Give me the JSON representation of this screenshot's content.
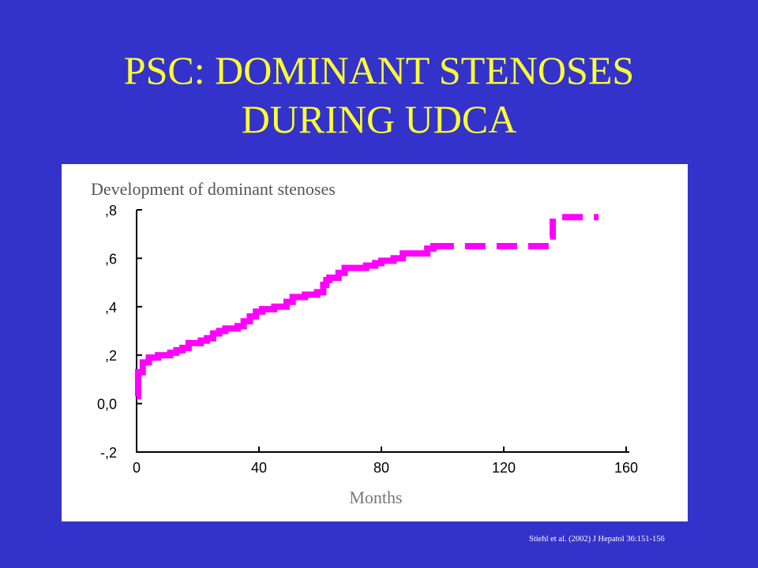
{
  "slide": {
    "title_line1": "PSC: DOMINANT STENOSES",
    "title_line2": "DURING UDCA",
    "citation": "Stiehl et al. (2002) J Hepatol 36:151-156",
    "background_color": "#3333cc",
    "title_color": "#ffff33"
  },
  "chart_data": {
    "type": "line",
    "title": "Development of dominant stenoses",
    "xlabel": "Months",
    "ylabel": "",
    "xlim": [
      0,
      160
    ],
    "ylim": [
      -0.2,
      0.8
    ],
    "xticks": [
      {
        "value": 0,
        "label": "0"
      },
      {
        "value": 40,
        "label": "40"
      },
      {
        "value": 80,
        "label": "80"
      },
      {
        "value": 120,
        "label": "120"
      },
      {
        "value": 160,
        "label": "160"
      }
    ],
    "yticks": [
      {
        "value": -0.2,
        "label": "-,2"
      },
      {
        "value": 0.0,
        "label": "0,0"
      },
      {
        "value": 0.2,
        "label": ",2"
      },
      {
        "value": 0.4,
        "label": ",4"
      },
      {
        "value": 0.6,
        "label": ",6"
      },
      {
        "value": 0.8,
        "label": ",8"
      }
    ],
    "grid": false,
    "series": [
      {
        "color": "#ff00ff",
        "style": "step",
        "points": [
          {
            "x": 0,
            "y": 0.03
          },
          {
            "x": 0.5,
            "y": 0.13
          },
          {
            "x": 2,
            "y": 0.17
          },
          {
            "x": 4,
            "y": 0.19
          },
          {
            "x": 7,
            "y": 0.2
          },
          {
            "x": 11,
            "y": 0.21
          },
          {
            "x": 13,
            "y": 0.22
          },
          {
            "x": 15,
            "y": 0.23
          },
          {
            "x": 17,
            "y": 0.25
          },
          {
            "x": 21,
            "y": 0.26
          },
          {
            "x": 23,
            "y": 0.27
          },
          {
            "x": 25,
            "y": 0.29
          },
          {
            "x": 27,
            "y": 0.3
          },
          {
            "x": 29,
            "y": 0.31
          },
          {
            "x": 33,
            "y": 0.32
          },
          {
            "x": 35,
            "y": 0.34
          },
          {
            "x": 37,
            "y": 0.36
          },
          {
            "x": 39,
            "y": 0.38
          },
          {
            "x": 41,
            "y": 0.39
          },
          {
            "x": 45,
            "y": 0.4
          },
          {
            "x": 49,
            "y": 0.42
          },
          {
            "x": 51,
            "y": 0.44
          },
          {
            "x": 55,
            "y": 0.45
          },
          {
            "x": 59,
            "y": 0.46
          },
          {
            "x": 61,
            "y": 0.49
          },
          {
            "x": 62,
            "y": 0.51
          },
          {
            "x": 63,
            "y": 0.52
          },
          {
            "x": 66,
            "y": 0.54
          },
          {
            "x": 68,
            "y": 0.56
          },
          {
            "x": 75,
            "y": 0.57
          },
          {
            "x": 78,
            "y": 0.58
          },
          {
            "x": 80,
            "y": 0.59
          },
          {
            "x": 84,
            "y": 0.6
          },
          {
            "x": 87,
            "y": 0.62
          },
          {
            "x": 95,
            "y": 0.64
          },
          {
            "x": 97,
            "y": 0.65
          },
          {
            "x": 135,
            "y": 0.69
          },
          {
            "x": 136,
            "y": 0.77
          },
          {
            "x": 151,
            "y": 0.77
          }
        ],
        "dashed_from_x": 100
      }
    ]
  }
}
